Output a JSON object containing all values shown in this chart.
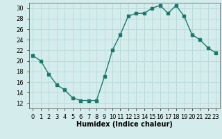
{
  "x": [
    0,
    1,
    2,
    3,
    4,
    5,
    6,
    7,
    8,
    9,
    10,
    11,
    12,
    13,
    14,
    15,
    16,
    17,
    18,
    19,
    20,
    21,
    22,
    23
  ],
  "y": [
    21.0,
    20.0,
    17.5,
    15.5,
    14.5,
    13.0,
    12.5,
    12.5,
    12.5,
    17.0,
    22.0,
    25.0,
    28.5,
    29.0,
    29.0,
    30.0,
    30.5,
    29.0,
    30.5,
    28.5,
    25.0,
    24.0,
    22.5,
    21.5
  ],
  "line_color": "#1a7a6a",
  "bg_color": "#d4ecec",
  "grid_color": "#b8d8d8",
  "xlabel": "Humidex (Indice chaleur)",
  "xlabel_fontsize": 7,
  "xlim": [
    -0.5,
    23.5
  ],
  "ylim": [
    11,
    31
  ],
  "yticks": [
    12,
    14,
    16,
    18,
    20,
    22,
    24,
    26,
    28,
    30
  ],
  "xtick_labels": [
    "0",
    "1",
    "2",
    "3",
    "4",
    "5",
    "6",
    "7",
    "8",
    "9",
    "10",
    "11",
    "12",
    "13",
    "14",
    "15",
    "16",
    "17",
    "18",
    "19",
    "20",
    "21",
    "22",
    "23"
  ],
  "tick_fontsize": 6,
  "marker_size": 2.5,
  "line_width": 1.0
}
